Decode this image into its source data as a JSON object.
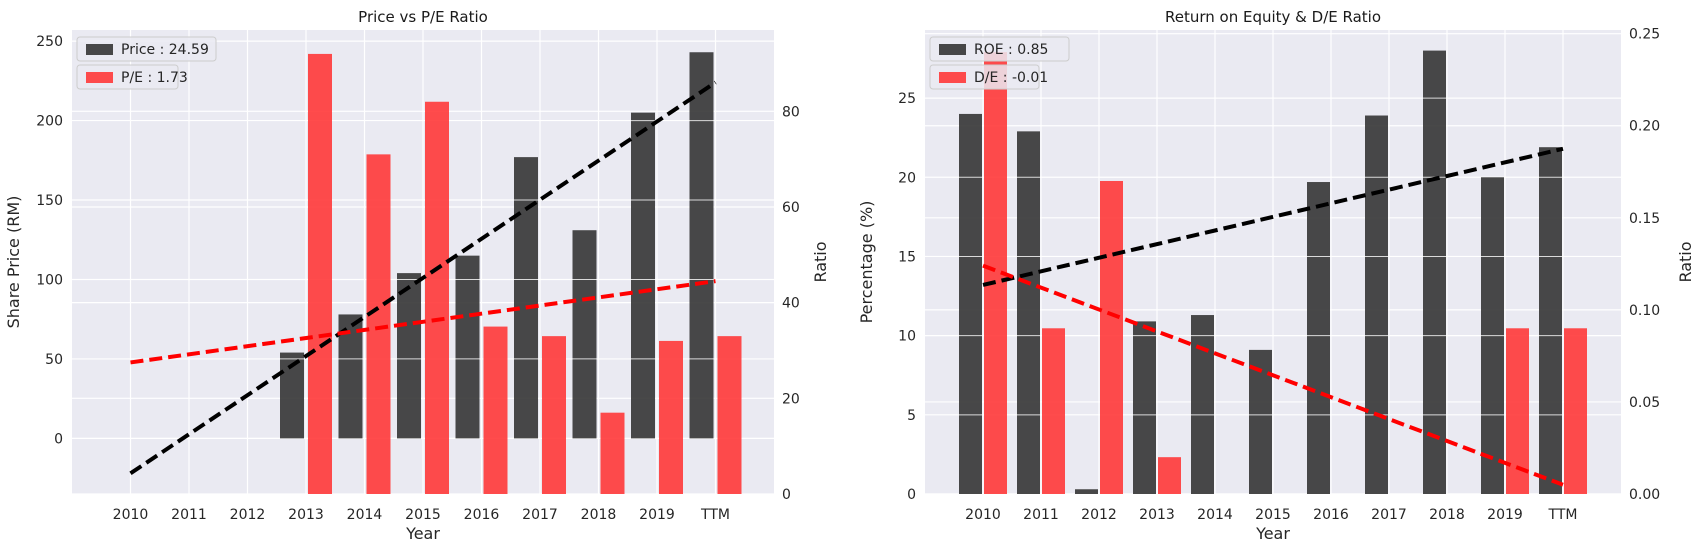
{
  "chart_data": [
    {
      "type": "bar",
      "title": "Price vs P/E Ratio",
      "xlabel": "Year",
      "ylabel": "Share Price (RM)",
      "ylabel_right": "Ratio",
      "categories": [
        "2010",
        "2011",
        "2012",
        "2013",
        "2014",
        "2015",
        "2016",
        "2017",
        "2018",
        "2019",
        "TTM"
      ],
      "ylim": [
        -35,
        257
      ],
      "ylim_right": [
        0,
        97
      ],
      "yticks": [
        "0",
        "50",
        "100",
        "150",
        "200",
        "250"
      ],
      "yticks_right": [
        "0",
        "20",
        "40",
        "60",
        "80"
      ],
      "grid": true,
      "legend_position": "top-left",
      "series": [
        {
          "name": "Price : 24.59",
          "axis": "left",
          "color": "#303030",
          "values": [
            null,
            null,
            null,
            54,
            78,
            104,
            115,
            177,
            131,
            205,
            243
          ]
        },
        {
          "name": "P/E : 1.73",
          "axis": "right",
          "color": "#ff3333",
          "values": [
            null,
            null,
            null,
            92,
            71,
            82,
            35,
            33,
            17,
            32,
            33
          ]
        }
      ],
      "trendlines": [
        {
          "axis": "left",
          "color": "#000000",
          "x_from": "2010",
          "x_to": "TTM",
          "y_from": -22,
          "y_to": 224
        },
        {
          "axis": "right",
          "color": "#ff0000",
          "x_from": "2010",
          "x_to": "TTM",
          "y_from": 27.5,
          "y_to": 44.5
        }
      ]
    },
    {
      "type": "bar",
      "title": "Return on Equity & D/E Ratio",
      "xlabel": "Year",
      "ylabel": "Percentage (%)",
      "ylabel_right": "Ratio",
      "categories": [
        "2010",
        "2011",
        "2012",
        "2013",
        "2014",
        "2015",
        "2016",
        "2017",
        "2018",
        "2019",
        "TTM"
      ],
      "ylim": [
        0,
        29.3
      ],
      "ylim_right": [
        0,
        0.252
      ],
      "yticks": [
        "0",
        "5",
        "10",
        "15",
        "20",
        "25"
      ],
      "yticks_right": [
        "0.00",
        "0.05",
        "0.10",
        "0.15",
        "0.20",
        "0.25"
      ],
      "grid": true,
      "legend_position": "top-left",
      "series": [
        {
          "name": "ROE : 0.85",
          "axis": "left",
          "color": "#303030",
          "values": [
            24,
            22.9,
            0.3,
            10.9,
            11.3,
            9.1,
            19.7,
            23.9,
            28,
            20,
            21.9
          ]
        },
        {
          "name": "D/E : -0.01",
          "axis": "right",
          "color": "#ff3333",
          "values": [
            0.24,
            0.09,
            0.17,
            0.02,
            null,
            null,
            null,
            null,
            null,
            0.09,
            0.09
          ]
        }
      ],
      "trendlines": [
        {
          "axis": "left",
          "color": "#000000",
          "x_from": "2010",
          "x_to": "TTM",
          "y_from": 13.2,
          "y_to": 21.8
        },
        {
          "axis": "right",
          "color": "#ff0000",
          "x_from": "2010",
          "x_to": "TTM",
          "y_from": 0.124,
          "y_to": 0.005
        }
      ]
    }
  ]
}
